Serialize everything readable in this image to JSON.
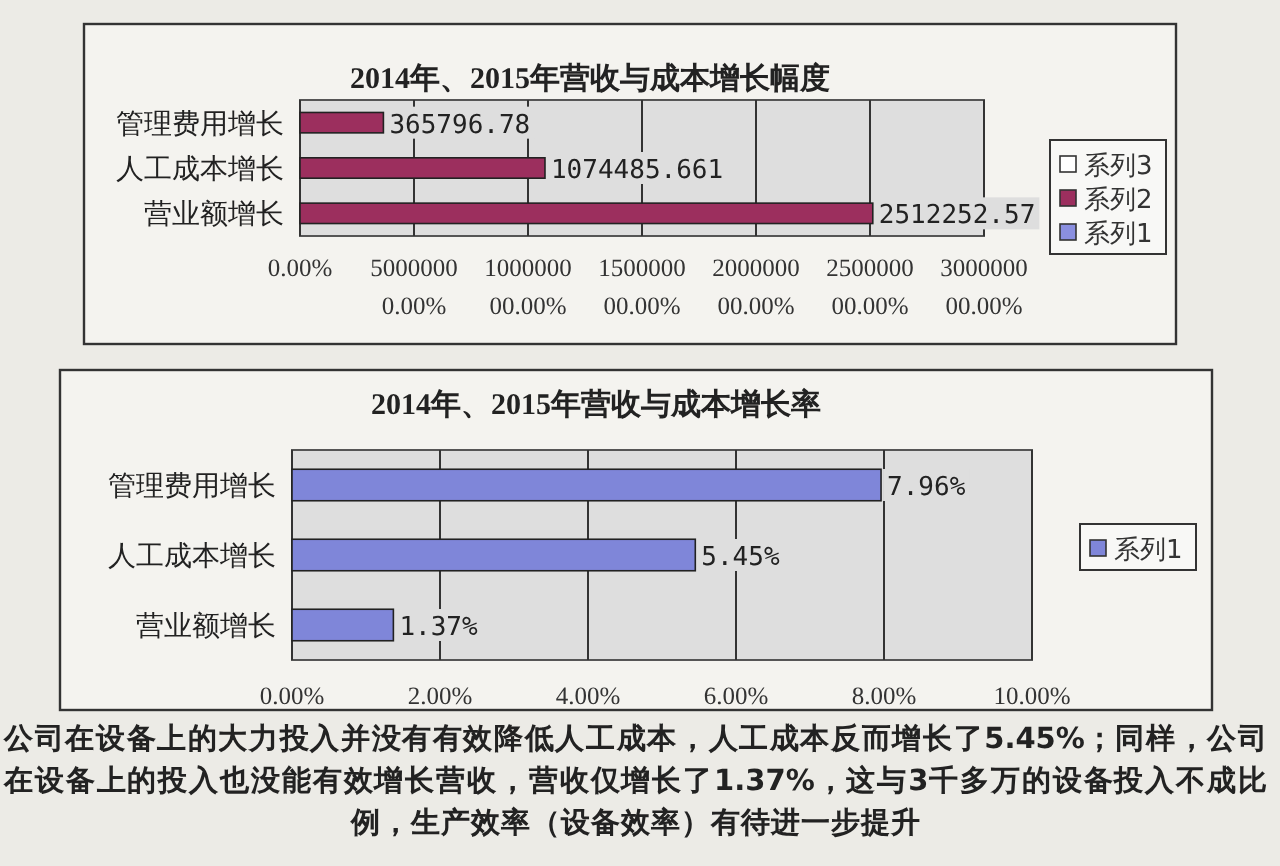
{
  "chart_data": [
    {
      "type": "bar",
      "orientation": "horizontal",
      "title": "2014年、2015年营收与成本增长幅度",
      "categories": [
        "管理费用增长",
        "人工成本增长",
        "营业额增长"
      ],
      "series": [
        {
          "name": "系列1",
          "color": "#8a8fe0",
          "values": [
            null,
            null,
            null
          ]
        },
        {
          "name": "系列2",
          "color": "#9c2f5e",
          "values": [
            365796.78,
            1074485.661,
            2512252.57
          ]
        },
        {
          "name": "系列3",
          "color": "#ffffff",
          "values": [
            null,
            null,
            null
          ]
        }
      ],
      "data_labels": true,
      "xlim": [
        0,
        3000000
      ],
      "xticks": [
        {
          "value": 0,
          "label": "0.00%"
        },
        {
          "value": 500000,
          "label": "50000000.00%"
        },
        {
          "value": 1000000,
          "label": "100000000.00%"
        },
        {
          "value": 1500000,
          "label": "150000000.00%"
        },
        {
          "value": 2000000,
          "label": "200000000.00%"
        },
        {
          "value": 2500000,
          "label": "250000000.00%"
        },
        {
          "value": 3000000,
          "label": "300000000.00%"
        }
      ],
      "grid": "x",
      "legend": "right"
    },
    {
      "type": "bar",
      "orientation": "horizontal",
      "title": "2014年、2015年营收与成本增长率",
      "categories": [
        "管理费用增长",
        "人工成本增长",
        "营业额增长"
      ],
      "series": [
        {
          "name": "系列1",
          "color": "#7f86d9",
          "values": [
            7.96,
            5.45,
            1.37
          ],
          "value_labels": [
            "7.96%",
            "5.45%",
            "1.37%"
          ]
        }
      ],
      "xlim": [
        0,
        10
      ],
      "xticks": [
        {
          "value": 0,
          "label": "0.00%"
        },
        {
          "value": 2,
          "label": "2.00%"
        },
        {
          "value": 4,
          "label": "4.00%"
        },
        {
          "value": 6,
          "label": "6.00%"
        },
        {
          "value": 8,
          "label": "8.00%"
        },
        {
          "value": 10,
          "label": "10.00%"
        }
      ],
      "grid": "x",
      "legend": "right",
      "annotations": [
        "公司在设备上的大力投入并没有有效降低人工成本，人工成本反而增长了5.45%；同样，公司在设备上的投入也没能有效增长营收，营收仅增长了1.37%，这与3千多万的设备投入不成比例，生产效率（设备效率）有待进一步提升"
      ]
    }
  ]
}
